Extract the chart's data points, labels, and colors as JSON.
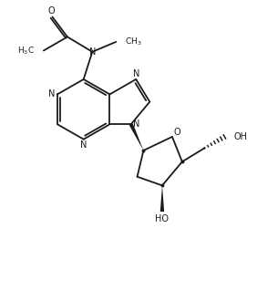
{
  "bg_color": "#ffffff",
  "line_color": "#1a1a1a",
  "line_width": 1.3,
  "font_size": 7.0,
  "figsize": [
    2.82,
    3.3
  ],
  "dpi": 100,
  "xlim": [
    0.0,
    10.0
  ],
  "ylim": [
    0.0,
    12.0
  ]
}
